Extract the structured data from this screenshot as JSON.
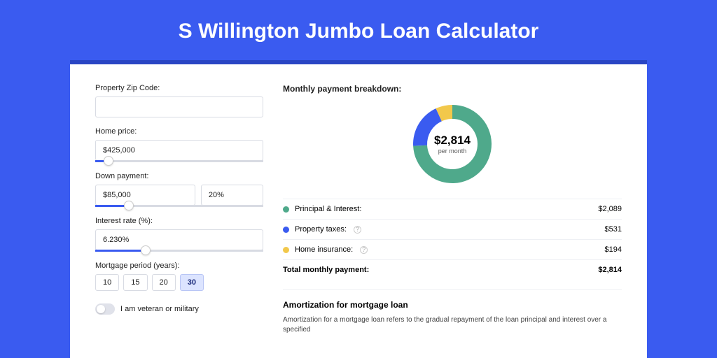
{
  "page": {
    "title": "S Willington Jumbo Loan Calculator",
    "bg_color": "#3a5bf0",
    "inner_bg": "#2945c4"
  },
  "form": {
    "zip_label": "Property Zip Code:",
    "zip_value": "",
    "home_price_label": "Home price:",
    "home_price_value": "$425,000",
    "home_price_slider_pct": 8,
    "down_payment_label": "Down payment:",
    "down_payment_value": "$85,000",
    "down_payment_pct_value": "20%",
    "down_payment_slider_pct": 20,
    "interest_label": "Interest rate (%):",
    "interest_value": "6.230%",
    "interest_slider_pct": 30,
    "period_label": "Mortgage period (years):",
    "periods": [
      "10",
      "15",
      "20",
      "30"
    ],
    "period_selected": "30",
    "veteran_label": "I am veteran or military",
    "veteran_on": false
  },
  "breakdown": {
    "title": "Monthly payment breakdown:",
    "donut": {
      "value": "$2,814",
      "sub": "per month",
      "segments": [
        {
          "label": "Principal & Interest:",
          "value": "$2,089",
          "value_num": 2089,
          "color": "#4fa98b"
        },
        {
          "label": "Property taxes:",
          "value": "$531",
          "value_num": 531,
          "color": "#3a5bf0",
          "info": true
        },
        {
          "label": "Home insurance:",
          "value": "$194",
          "value_num": 194,
          "color": "#f2c84b",
          "info": true
        }
      ]
    },
    "total_label": "Total monthly payment:",
    "total_value": "$2,814"
  },
  "amortization": {
    "title": "Amortization for mortgage loan",
    "text": "Amortization for a mortgage loan refers to the gradual repayment of the loan principal and interest over a specified"
  }
}
